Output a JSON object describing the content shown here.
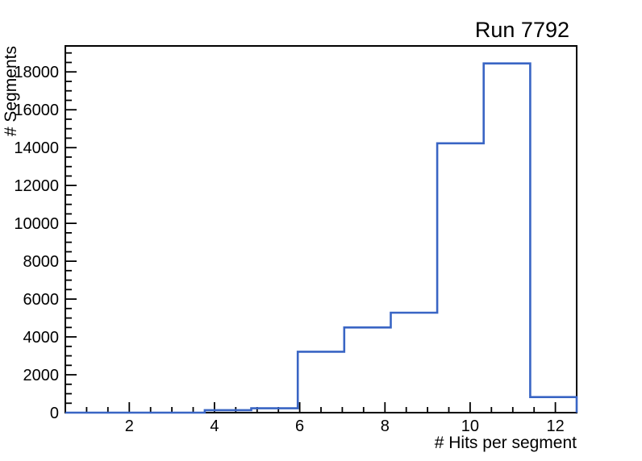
{
  "title": "Run 7792",
  "chart_data": {
    "type": "bar",
    "style": "step-outline-histogram",
    "title": "Run 7792",
    "xlabel": "# Hits per segment",
    "ylabel": "# Segments",
    "xlim": [
      0.5,
      12.5
    ],
    "ylim": [
      0,
      19372
    ],
    "bin_width": 1.0909,
    "bin_edges": [
      0.5,
      1.5909,
      2.6818,
      3.7727,
      4.8636,
      5.9545,
      7.0455,
      8.1364,
      9.2273,
      10.3182,
      11.4091,
      12.5
    ],
    "values": [
      0,
      0,
      0,
      130,
      230,
      3220,
      4500,
      5280,
      14230,
      18450,
      820
    ],
    "x_major_ticks": [
      2,
      4,
      6,
      8,
      10,
      12
    ],
    "x_tick_labels": [
      "2",
      "4",
      "6",
      "8",
      "10",
      "12"
    ],
    "x_minor_step": 0.5,
    "y_major_ticks": [
      0,
      2000,
      4000,
      6000,
      8000,
      10000,
      12000,
      14000,
      16000,
      18000
    ],
    "y_tick_labels": [
      "0",
      "2000",
      "4000",
      "6000",
      "8000",
      "10000",
      "12000",
      "14000",
      "16000",
      "18000"
    ],
    "y_minor_step": 500,
    "grid": false,
    "legend": "none",
    "line_color": "#3965c4",
    "frame_color": "#000000",
    "background_color": "#ffffff"
  }
}
